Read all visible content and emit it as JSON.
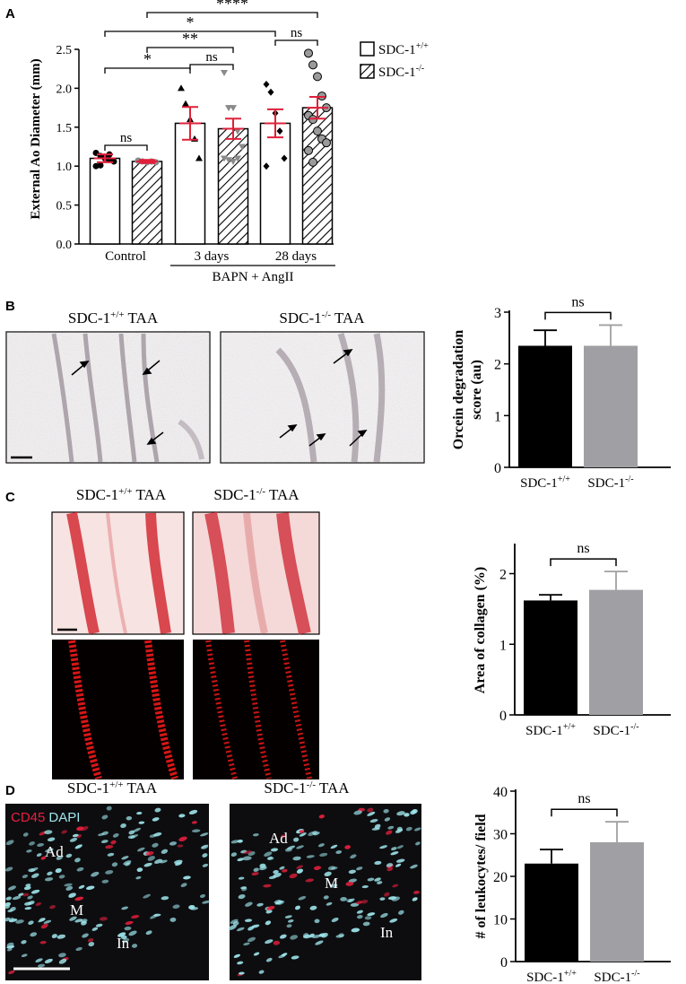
{
  "panels": {
    "A": "A",
    "B": "B",
    "C": "C",
    "D": "D"
  },
  "chart_data": [
    {
      "id": "A",
      "type": "bar",
      "ylabel": "External Ao Diameter (mm)",
      "ylim": [
        0,
        2.5
      ],
      "yticks": [
        "0.0",
        "0.5",
        "1.0",
        "1.5",
        "2.0",
        "2.5"
      ],
      "groups": [
        "Control",
        "3 days",
        "28 days"
      ],
      "group_bracket_label": "BAPN + AngII",
      "legend": [
        {
          "label": "SDC-1+/+",
          "sup": "+/+"
        },
        {
          "label": "SDC-1-/-",
          "sup": "-/-"
        }
      ],
      "series": [
        {
          "name": "SDC-1+/+",
          "values": [
            1.1,
            1.55,
            1.55
          ],
          "sem": [
            0.05,
            0.21,
            0.18
          ]
        },
        {
          "name": "SDC-1-/-",
          "values": [
            1.06,
            1.48,
            1.75
          ],
          "sem": [
            0.02,
            0.13,
            0.14
          ]
        }
      ],
      "points": [
        [
          [
            1.17,
            1.13,
            1.1,
            1.08,
            1.06,
            1.0,
            1.01,
            1.12,
            1.15
          ],
          [
            1.07,
            1.06,
            1.05,
            1.06,
            1.05,
            1.07
          ]
        ],
        [
          [
            2.0,
            1.8,
            1.6,
            1.35,
            1.1
          ],
          [
            2.2,
            1.75,
            1.75,
            1.45,
            1.25,
            1.1,
            1.08,
            1.06,
            1.1
          ]
        ],
        [
          [
            2.05,
            1.95,
            1.68,
            1.45,
            1.1,
            1.0
          ],
          [
            2.45,
            2.3,
            2.15,
            1.9,
            1.75,
            1.65,
            1.6,
            1.45,
            1.35,
            1.3,
            1.2,
            1.05
          ]
        ]
      ],
      "significance": [
        {
          "label": "ns"
        },
        {
          "label": "*"
        },
        {
          "label": "ns"
        },
        {
          "label": "**"
        },
        {
          "label": "*"
        },
        {
          "label": "ns"
        },
        {
          "label": "*"
        },
        {
          "label": "****"
        }
      ]
    },
    {
      "id": "B",
      "type": "bar",
      "ylabel_lines": [
        "Orcein degradation",
        "score (au)"
      ],
      "ylim": [
        0,
        3
      ],
      "yticks": [
        "0",
        "1",
        "2",
        "3"
      ],
      "categories": [
        "SDC-1+/+",
        "SDC-1-/-"
      ],
      "values": [
        2.35,
        2.35
      ],
      "sem": [
        0.3,
        0.4
      ],
      "significance": "ns"
    },
    {
      "id": "C",
      "type": "bar",
      "ylabel": "Area of collagen (%)",
      "ylim": [
        0,
        2.4
      ],
      "yticks": [
        "0",
        "1",
        "2"
      ],
      "categories": [
        "SDC-1+/+",
        "SDC-1-/-"
      ],
      "values": [
        1.62,
        1.77
      ],
      "sem": [
        0.08,
        0.26
      ],
      "significance": "ns"
    },
    {
      "id": "D",
      "type": "bar",
      "ylabel": "# of leukocytes/ field",
      "ylim": [
        0,
        40
      ],
      "yticks": [
        "0",
        "10",
        "20",
        "30",
        "40"
      ],
      "categories": [
        "SDC-1+/+",
        "SDC-1-/-"
      ],
      "values": [
        23,
        28
      ],
      "sem": [
        3.3,
        4.8
      ],
      "significance": "ns"
    }
  ],
  "images": {
    "B": {
      "left_title": "SDC-1+/+ TAA",
      "right_title": "SDC-1-/- TAA"
    },
    "C": {
      "left_title": "SDC-1+/+ TAA",
      "right_title": "SDC-1-/- TAA"
    },
    "D": {
      "left_title": "SDC-1+/+ TAA",
      "right_title": "SDC-1-/- TAA",
      "stain_cd45": "CD45",
      "stain_dapi": "DAPI",
      "labels_left": [
        "Ad",
        "M",
        "In"
      ],
      "labels_right": [
        "Ad",
        "M",
        "In"
      ]
    }
  },
  "colors": {
    "wt_bar": "#000000",
    "ko_bar": "#a0a0a4",
    "error_red": "#e0203a",
    "collagen": "#d42b35",
    "fluor_red": "#ff1a1a",
    "dapi_cyan": "#9fe6ec",
    "cd45_label": "#e8203c"
  }
}
